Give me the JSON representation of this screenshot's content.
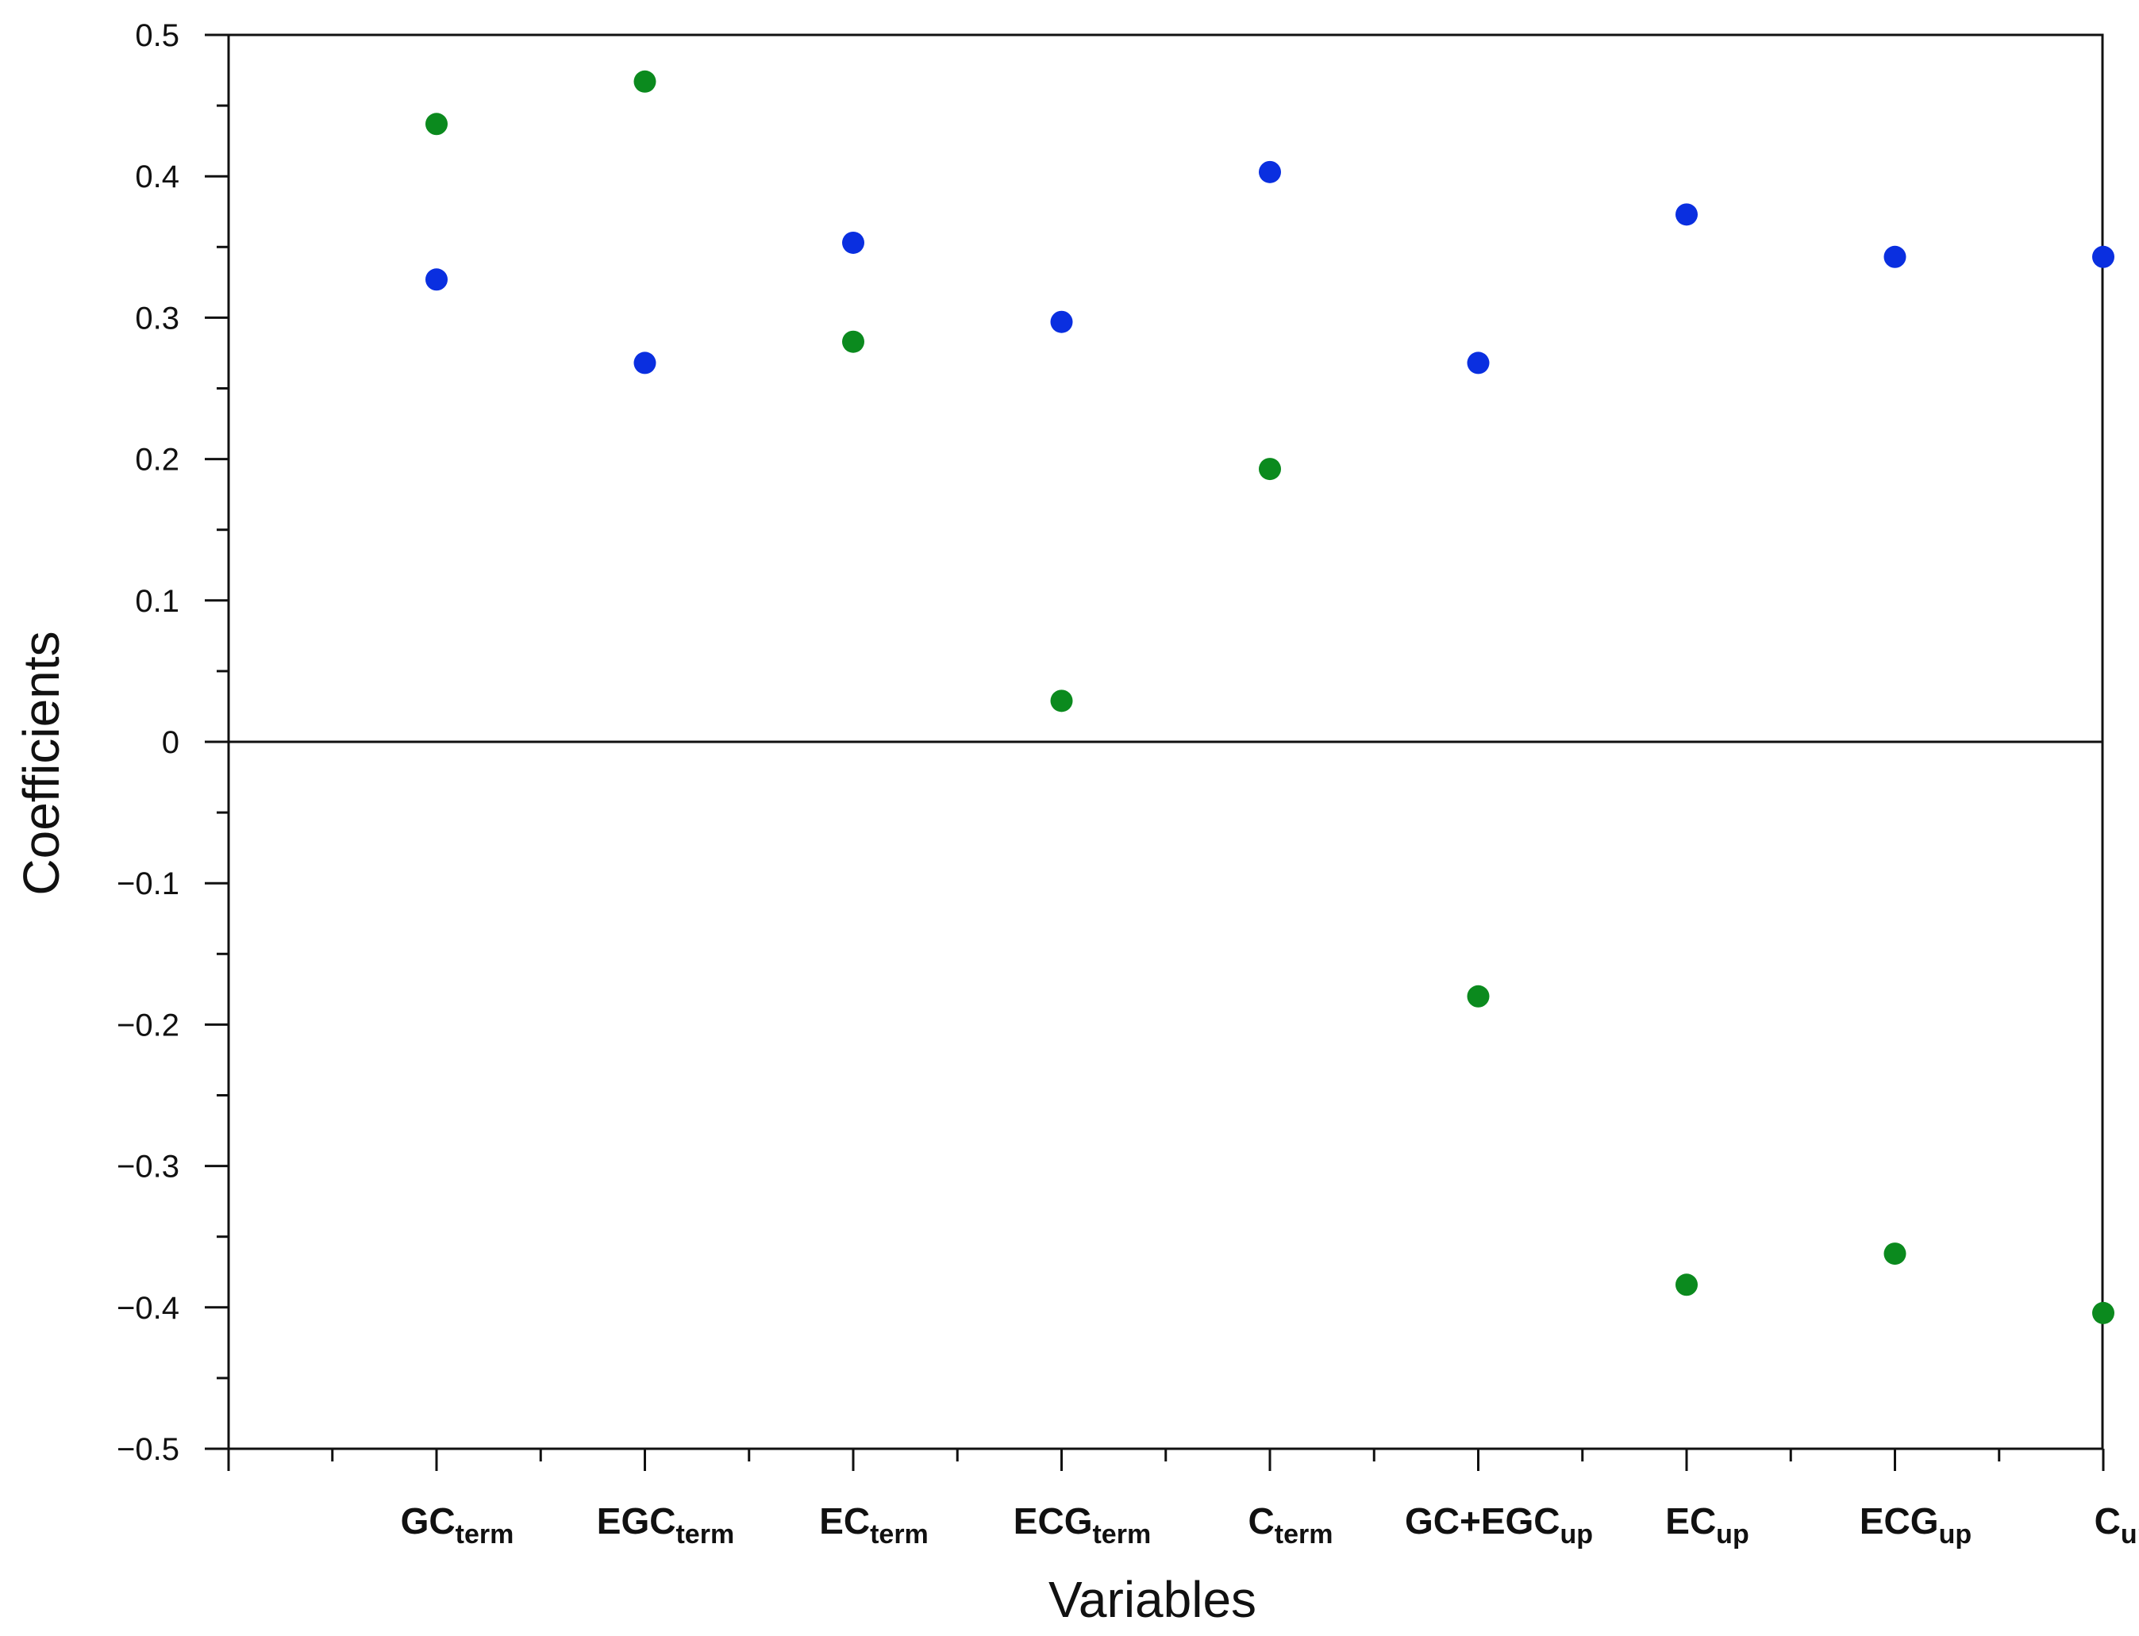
{
  "chart_data": {
    "type": "scatter",
    "title": "",
    "xlabel": "Variables",
    "ylabel": "Coefficients",
    "ylim": [
      -0.5,
      0.5
    ],
    "yticks": [
      "0.5",
      "0.4",
      "0.3",
      "0.2",
      "0.1",
      "0",
      "−0.1",
      "−0.2",
      "−0.3",
      "−0.4",
      "−0.5"
    ],
    "ytick_values": [
      0.5,
      0.4,
      0.3,
      0.2,
      0.1,
      0,
      -0.1,
      -0.2,
      -0.3,
      -0.4,
      -0.5
    ],
    "categories": [
      {
        "main": "GC",
        "sub": "term"
      },
      {
        "main": "EGC",
        "sub": "term"
      },
      {
        "main": "EC",
        "sub": "term"
      },
      {
        "main": "ECG",
        "sub": "term"
      },
      {
        "main": "C",
        "sub": "term"
      },
      {
        "main": "GC+EGC",
        "sub": "up"
      },
      {
        "main": "EC",
        "sub": "up"
      },
      {
        "main": "ECG",
        "sub": "up"
      },
      {
        "main": "C",
        "sub": "up"
      }
    ],
    "series": [
      {
        "color": "#0a2fe0",
        "values": [
          0.327,
          0.268,
          0.353,
          0.297,
          0.403,
          0.268,
          0.373,
          0.343,
          0.343
        ]
      },
      {
        "color": "#0b8a1e",
        "values": [
          0.437,
          0.467,
          0.283,
          0.029,
          0.193,
          -0.18,
          -0.384,
          -0.362,
          -0.404
        ]
      }
    ],
    "zero_line": true,
    "grid": false
  }
}
